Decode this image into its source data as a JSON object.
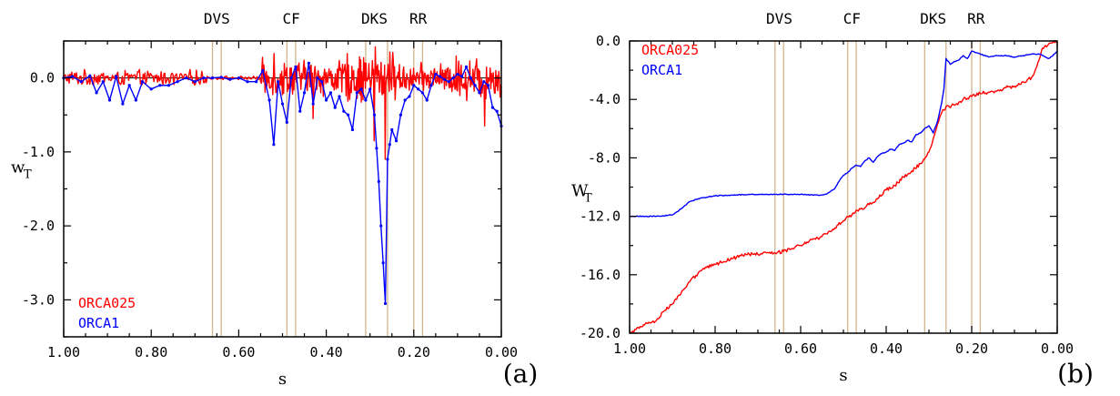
{
  "colors": {
    "orca025": "#ff0000",
    "orca1": "#0000ff",
    "region_line": "#d2b48c",
    "frame": "#000000"
  },
  "chart_data": [
    {
      "type": "line",
      "panel_tag": "(a)",
      "xlabel": "s",
      "ylabel": "w",
      "ylabel_sub": "T",
      "xlim": [
        1.0,
        0.0
      ],
      "ylim": [
        -3.5,
        0.5
      ],
      "xticks": [
        1.0,
        0.8,
        0.6,
        0.4,
        0.2,
        0.0
      ],
      "xtick_labels": [
        "1.00",
        "0.80",
        "0.60",
        "0.40",
        "0.20",
        "0.00"
      ],
      "yticks": [
        0.0,
        -1.0,
        -2.0,
        -3.0
      ],
      "ytick_labels": [
        "0.0",
        "-1.0",
        "-2.0",
        "-3.0"
      ],
      "zero_line": true,
      "legend_position": "bottom-left",
      "region_labels": [
        {
          "label": "DVS",
          "x": 0.65
        },
        {
          "label": "CF",
          "x": 0.48
        },
        {
          "label": "DKS",
          "x": 0.29
        },
        {
          "label": "RR",
          "x": 0.19
        }
      ],
      "region_lines": [
        0.66,
        0.64,
        0.49,
        0.47,
        0.31,
        0.26,
        0.2,
        0.18
      ],
      "series": [
        {
          "name": "ORCA025",
          "color": "#ff0000",
          "noisy_segments": [
            {
              "x0": 1.0,
              "x1": 0.67,
              "amp": 0.12,
              "n": 160
            },
            {
              "x0": 0.67,
              "x1": 0.55,
              "amp": 0.03,
              "n": 45
            },
            {
              "x0": 0.55,
              "x1": 0.36,
              "amp": 0.28,
              "n": 130
            },
            {
              "x0": 0.36,
              "x1": 0.24,
              "amp": 0.38,
              "n": 90
            },
            {
              "x0": 0.24,
              "x1": 0.12,
              "amp": 0.22,
              "n": 85
            },
            {
              "x0": 0.12,
              "x1": 0.0,
              "amp": 0.35,
              "n": 85
            }
          ],
          "extremes": [
            {
              "x": 0.29,
              "y": -0.85
            },
            {
              "x": 0.288,
              "y": 0.42
            },
            {
              "x": 0.265,
              "y": -1.1
            },
            {
              "x": 0.255,
              "y": 0.35
            },
            {
              "x": 0.038,
              "y": -0.65
            },
            {
              "x": 0.52,
              "y": 0.33
            },
            {
              "x": 0.43,
              "y": -0.55
            }
          ]
        },
        {
          "name": "ORCA1",
          "color": "#0000ff",
          "x": [
            1.0,
            0.98,
            0.96,
            0.94,
            0.925,
            0.91,
            0.895,
            0.88,
            0.865,
            0.85,
            0.835,
            0.82,
            0.8,
            0.78,
            0.76,
            0.74,
            0.72,
            0.7,
            0.68,
            0.66,
            0.64,
            0.62,
            0.6,
            0.58,
            0.56,
            0.545,
            0.53,
            0.52,
            0.51,
            0.5,
            0.49,
            0.48,
            0.47,
            0.46,
            0.45,
            0.44,
            0.43,
            0.42,
            0.41,
            0.4,
            0.39,
            0.38,
            0.37,
            0.36,
            0.35,
            0.34,
            0.33,
            0.32,
            0.31,
            0.3,
            0.29,
            0.285,
            0.28,
            0.275,
            0.27,
            0.265,
            0.26,
            0.255,
            0.25,
            0.24,
            0.23,
            0.22,
            0.21,
            0.2,
            0.19,
            0.18,
            0.17,
            0.16,
            0.15,
            0.14,
            0.13,
            0.12,
            0.11,
            0.1,
            0.09,
            0.08,
            0.07,
            0.06,
            0.05,
            0.04,
            0.03,
            0.02,
            0.01,
            0.0
          ],
          "y": [
            0.0,
            0.02,
            -0.05,
            0.03,
            -0.2,
            -0.05,
            -0.3,
            0.02,
            -0.35,
            -0.1,
            -0.3,
            -0.05,
            -0.15,
            -0.1,
            -0.1,
            -0.05,
            0.0,
            -0.05,
            0.0,
            0.0,
            0.01,
            -0.02,
            0.0,
            -0.05,
            -0.05,
            0.1,
            -0.3,
            -0.9,
            -0.05,
            -0.35,
            -0.6,
            0.0,
            0.15,
            -0.45,
            -0.2,
            0.2,
            -0.35,
            0.0,
            -0.05,
            -0.3,
            -0.2,
            -0.4,
            -0.25,
            -0.45,
            -0.5,
            -0.7,
            -0.2,
            -0.15,
            -0.3,
            -0.15,
            -0.5,
            -0.95,
            -1.4,
            -2.0,
            -2.5,
            -3.05,
            -1.1,
            -0.9,
            -0.7,
            -0.85,
            -0.5,
            -0.3,
            -0.25,
            -0.1,
            -0.15,
            -0.2,
            -0.3,
            -0.1,
            0.05,
            0.02,
            -0.02,
            -0.05,
            0.0,
            0.05,
            0.02,
            0.15,
            0.0,
            -0.1,
            -0.2,
            -0.05,
            -0.1,
            -0.4,
            -0.45,
            -0.65
          ]
        }
      ]
    },
    {
      "type": "line",
      "panel_tag": "(b)",
      "xlabel": "s",
      "ylabel": "W",
      "ylabel_sub": "T",
      "xlim": [
        1.0,
        0.0
      ],
      "ylim": [
        -20.0,
        0.0
      ],
      "xticks": [
        1.0,
        0.8,
        0.6,
        0.4,
        0.2,
        0.0
      ],
      "xtick_labels": [
        "1.00",
        "0.80",
        "0.60",
        "0.40",
        "0.20",
        "0.00"
      ],
      "yticks": [
        0.0,
        -4.0,
        -8.0,
        -12.0,
        -16.0,
        -20.0
      ],
      "ytick_labels": [
        "0.0",
        "-4.0",
        "-8.0",
        "-12.0",
        "-16.0",
        "-20.0"
      ],
      "zero_line": false,
      "legend_position": "top-left",
      "region_labels": [
        {
          "label": "DVS",
          "x": 0.65
        },
        {
          "label": "CF",
          "x": 0.48
        },
        {
          "label": "DKS",
          "x": 0.29
        },
        {
          "label": "RR",
          "x": 0.19
        }
      ],
      "region_lines": [
        0.66,
        0.64,
        0.49,
        0.47,
        0.31,
        0.26,
        0.2,
        0.18
      ],
      "series": [
        {
          "name": "ORCA025",
          "color": "#ff0000",
          "x": [
            1.0,
            0.98,
            0.96,
            0.94,
            0.92,
            0.9,
            0.88,
            0.86,
            0.84,
            0.82,
            0.8,
            0.78,
            0.76,
            0.74,
            0.72,
            0.7,
            0.68,
            0.66,
            0.64,
            0.62,
            0.6,
            0.58,
            0.56,
            0.54,
            0.52,
            0.5,
            0.48,
            0.46,
            0.44,
            0.42,
            0.4,
            0.38,
            0.36,
            0.34,
            0.32,
            0.3,
            0.29,
            0.28,
            0.27,
            0.26,
            0.24,
            0.22,
            0.2,
            0.18,
            0.16,
            0.14,
            0.12,
            0.1,
            0.08,
            0.06,
            0.05,
            0.04,
            0.035,
            0.03,
            0.02,
            0.01,
            0.0
          ],
          "y": [
            -20.0,
            -19.6,
            -19.3,
            -19.2,
            -18.5,
            -18.0,
            -17.3,
            -16.5,
            -15.9,
            -15.5,
            -15.3,
            -15.1,
            -14.9,
            -14.7,
            -14.6,
            -14.6,
            -14.5,
            -14.5,
            -14.4,
            -14.2,
            -14.0,
            -13.7,
            -13.5,
            -13.2,
            -12.8,
            -12.3,
            -11.9,
            -11.5,
            -11.2,
            -10.8,
            -10.2,
            -9.9,
            -9.3,
            -8.9,
            -8.4,
            -7.6,
            -6.7,
            -5.7,
            -4.9,
            -4.5,
            -4.4,
            -4.0,
            -3.8,
            -3.6,
            -3.5,
            -3.4,
            -3.2,
            -3.1,
            -2.8,
            -2.5,
            -1.9,
            -1.1,
            -0.5,
            -0.4,
            -0.2,
            -0.1,
            -0.1
          ],
          "jitter": 0.12
        },
        {
          "name": "ORCA1",
          "color": "#0000ff",
          "x": [
            1.0,
            0.96,
            0.93,
            0.9,
            0.88,
            0.86,
            0.84,
            0.82,
            0.8,
            0.76,
            0.72,
            0.68,
            0.64,
            0.6,
            0.56,
            0.54,
            0.52,
            0.51,
            0.5,
            0.49,
            0.48,
            0.47,
            0.46,
            0.45,
            0.44,
            0.43,
            0.42,
            0.41,
            0.4,
            0.39,
            0.38,
            0.37,
            0.36,
            0.35,
            0.34,
            0.33,
            0.32,
            0.31,
            0.3,
            0.29,
            0.28,
            0.27,
            0.265,
            0.26,
            0.25,
            0.24,
            0.23,
            0.22,
            0.21,
            0.2,
            0.19,
            0.18,
            0.16,
            0.14,
            0.12,
            0.1,
            0.08,
            0.06,
            0.04,
            0.02,
            0.01,
            0.0
          ],
          "y": [
            -12.0,
            -12.0,
            -12.0,
            -11.9,
            -11.5,
            -11.0,
            -10.8,
            -10.7,
            -10.6,
            -10.55,
            -10.5,
            -10.5,
            -10.5,
            -10.5,
            -10.55,
            -10.5,
            -10.1,
            -9.6,
            -9.2,
            -9.0,
            -8.7,
            -8.5,
            -8.6,
            -8.2,
            -8.0,
            -8.3,
            -7.9,
            -7.7,
            -7.6,
            -7.4,
            -7.5,
            -7.1,
            -7.0,
            -6.8,
            -6.9,
            -6.4,
            -6.3,
            -6.0,
            -5.8,
            -6.3,
            -5.5,
            -4.2,
            -3.3,
            -1.2,
            -1.6,
            -1.4,
            -1.3,
            -1.0,
            -1.2,
            -0.7,
            -0.8,
            -0.9,
            -1.1,
            -1.0,
            -1.0,
            -1.1,
            -1.0,
            -0.9,
            -0.9,
            -1.2,
            -1.0,
            -0.7
          ],
          "jitter": 0.03
        }
      ]
    }
  ]
}
